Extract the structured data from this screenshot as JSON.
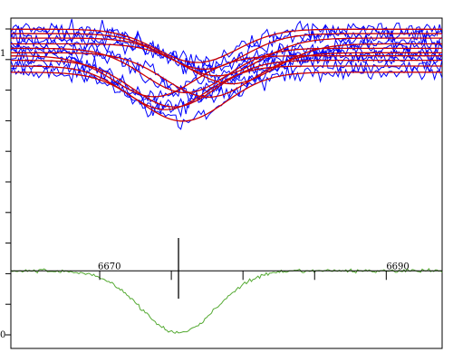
{
  "chart_data": {
    "type": "line",
    "title": "",
    "xlabel": "",
    "ylabel": "",
    "xlim": [
      6663.8,
      6693.9
    ],
    "ylim_profiles": [
      0.49,
      1.02
    ],
    "ylim_mean": [
      -0.05,
      0.02
    ],
    "grid": false,
    "x_tick_labels": [
      {
        "value": 6670,
        "label": "6670"
      },
      {
        "value": 6690,
        "label": "6690"
      }
    ],
    "x_ticks": [
      6670,
      6675,
      6680,
      6685,
      6690
    ],
    "y_tick_labels": [
      {
        "value": 1.0,
        "label": "1"
      },
      {
        "value": 0.5,
        "label": "0"
      }
    ],
    "y_ticks": [
      1.0,
      0.95,
      0.9,
      0.85,
      0.8,
      0.75,
      0.7,
      0.65,
      0.6,
      0.55,
      0.5
    ],
    "center_marker": {
      "x": 6675.5
    },
    "profile_series": [
      {
        "continuum": 0.995,
        "center": 6676.8,
        "depth": 0.075,
        "width": 2.8
      },
      {
        "continuum": 0.985,
        "center": 6677.3,
        "depth": 0.08,
        "width": 2.8
      },
      {
        "continuum": 0.975,
        "center": 6678.2,
        "depth": 0.085,
        "width": 2.9
      },
      {
        "continuum": 0.962,
        "center": 6679.2,
        "depth": 0.09,
        "width": 3.0
      },
      {
        "continuum": 0.952,
        "center": 6676.0,
        "depth": 0.1,
        "width": 2.9
      },
      {
        "continuum": 0.942,
        "center": 6677.6,
        "depth": 0.1,
        "width": 3.0
      },
      {
        "continuum": 0.935,
        "center": 6673.8,
        "depth": 0.092,
        "width": 2.8
      },
      {
        "continuum": 0.925,
        "center": 6675.2,
        "depth": 0.105,
        "width": 2.9
      },
      {
        "continuum": 0.912,
        "center": 6674.6,
        "depth": 0.098,
        "width": 2.8
      },
      {
        "continuum": 0.898,
        "center": 6675.8,
        "depth": 0.11,
        "width": 3.0
      }
    ],
    "mean_profile": {
      "continuum": 0.0,
      "center": 6675.5,
      "depth": 0.04,
      "width": 2.6
    },
    "colors": {
      "observed": "#0000ff",
      "fit": "#cc0000",
      "mean": "#55aa33",
      "axis": "#000000"
    }
  }
}
